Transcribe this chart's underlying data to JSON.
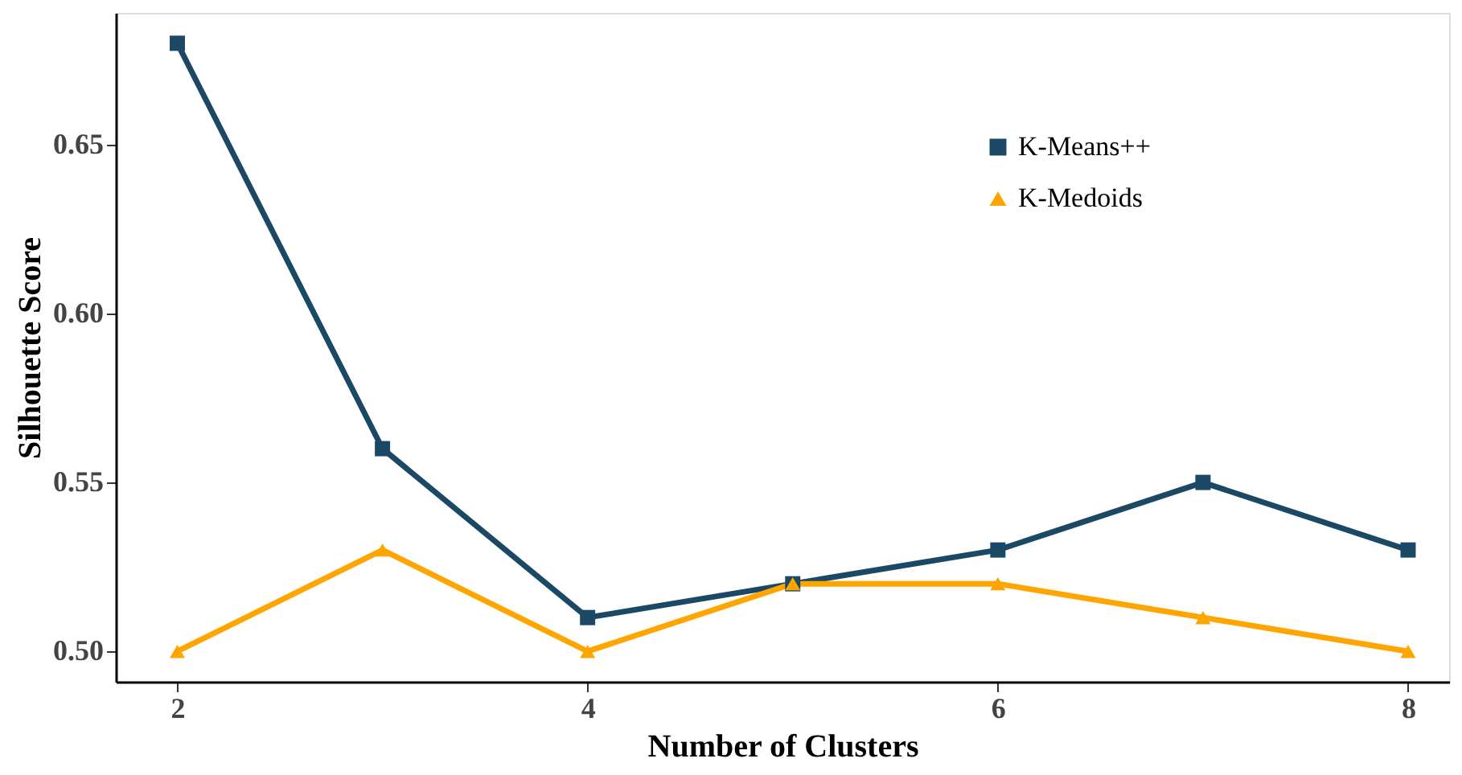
{
  "chart_data": {
    "type": "line",
    "xlabel": "Number of Clusters",
    "ylabel": "Silhouette Score",
    "x": [
      2,
      3,
      4,
      5,
      6,
      7,
      8
    ],
    "series": [
      {
        "name": "K-Means++",
        "color": "#1b4965",
        "marker": "square",
        "values": [
          0.68,
          0.56,
          0.51,
          0.52,
          0.53,
          0.55,
          0.53
        ]
      },
      {
        "name": "K-Medoids",
        "color": "#ffa500",
        "marker": "triangle",
        "values": [
          0.5,
          0.53,
          0.5,
          0.52,
          0.52,
          0.51,
          0.5
        ]
      }
    ],
    "xlim": [
      1.7,
      8.2
    ],
    "xticks": [
      2,
      4,
      6,
      8
    ],
    "ylim": [
      0.491,
      0.689
    ],
    "yticks": [
      {
        "value": 0.5,
        "label": "0.50"
      },
      0.55,
      {
        "value": 0.6,
        "label": "0.60"
      },
      0.65
    ],
    "grid": false,
    "legend": "top right",
    "line_style": "solid"
  }
}
